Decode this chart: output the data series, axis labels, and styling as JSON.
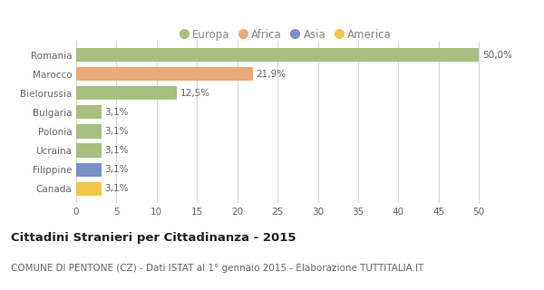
{
  "categories": [
    "Canada",
    "Filippine",
    "Ucraina",
    "Polonia",
    "Bulgaria",
    "Bielorussia",
    "Marocco",
    "Romania"
  ],
  "values": [
    3.1,
    3.1,
    3.1,
    3.1,
    3.1,
    12.5,
    21.9,
    50.0
  ],
  "labels": [
    "3,1%",
    "3,1%",
    "3,1%",
    "3,1%",
    "3,1%",
    "12,5%",
    "21,9%",
    "50,0%"
  ],
  "colors": [
    "#f2c84b",
    "#7a8fc4",
    "#a8bf80",
    "#a8bf80",
    "#a8bf80",
    "#a8bf80",
    "#e8aa78",
    "#a8bf80"
  ],
  "legend_items": [
    "Europa",
    "Africa",
    "Asia",
    "America"
  ],
  "legend_colors": [
    "#a8bf80",
    "#e8aa78",
    "#7a8fc4",
    "#f2c84b"
  ],
  "title": "Cittadini Stranieri per Cittadinanza - 2015",
  "subtitle": "COMUNE DI PENTONE (CZ) - Dati ISTAT al 1° gennaio 2015 - Elaborazione TUTTITALIA.IT",
  "xlim": [
    0,
    52
  ],
  "xticks": [
    0,
    5,
    10,
    15,
    20,
    25,
    30,
    35,
    40,
    45,
    50
  ],
  "background_color": "#ffffff",
  "grid_color": "#d8d8d8",
  "bar_height": 0.72,
  "title_fontsize": 9.5,
  "subtitle_fontsize": 7.5,
  "label_fontsize": 7.5,
  "tick_fontsize": 7.5,
  "legend_fontsize": 8.5
}
